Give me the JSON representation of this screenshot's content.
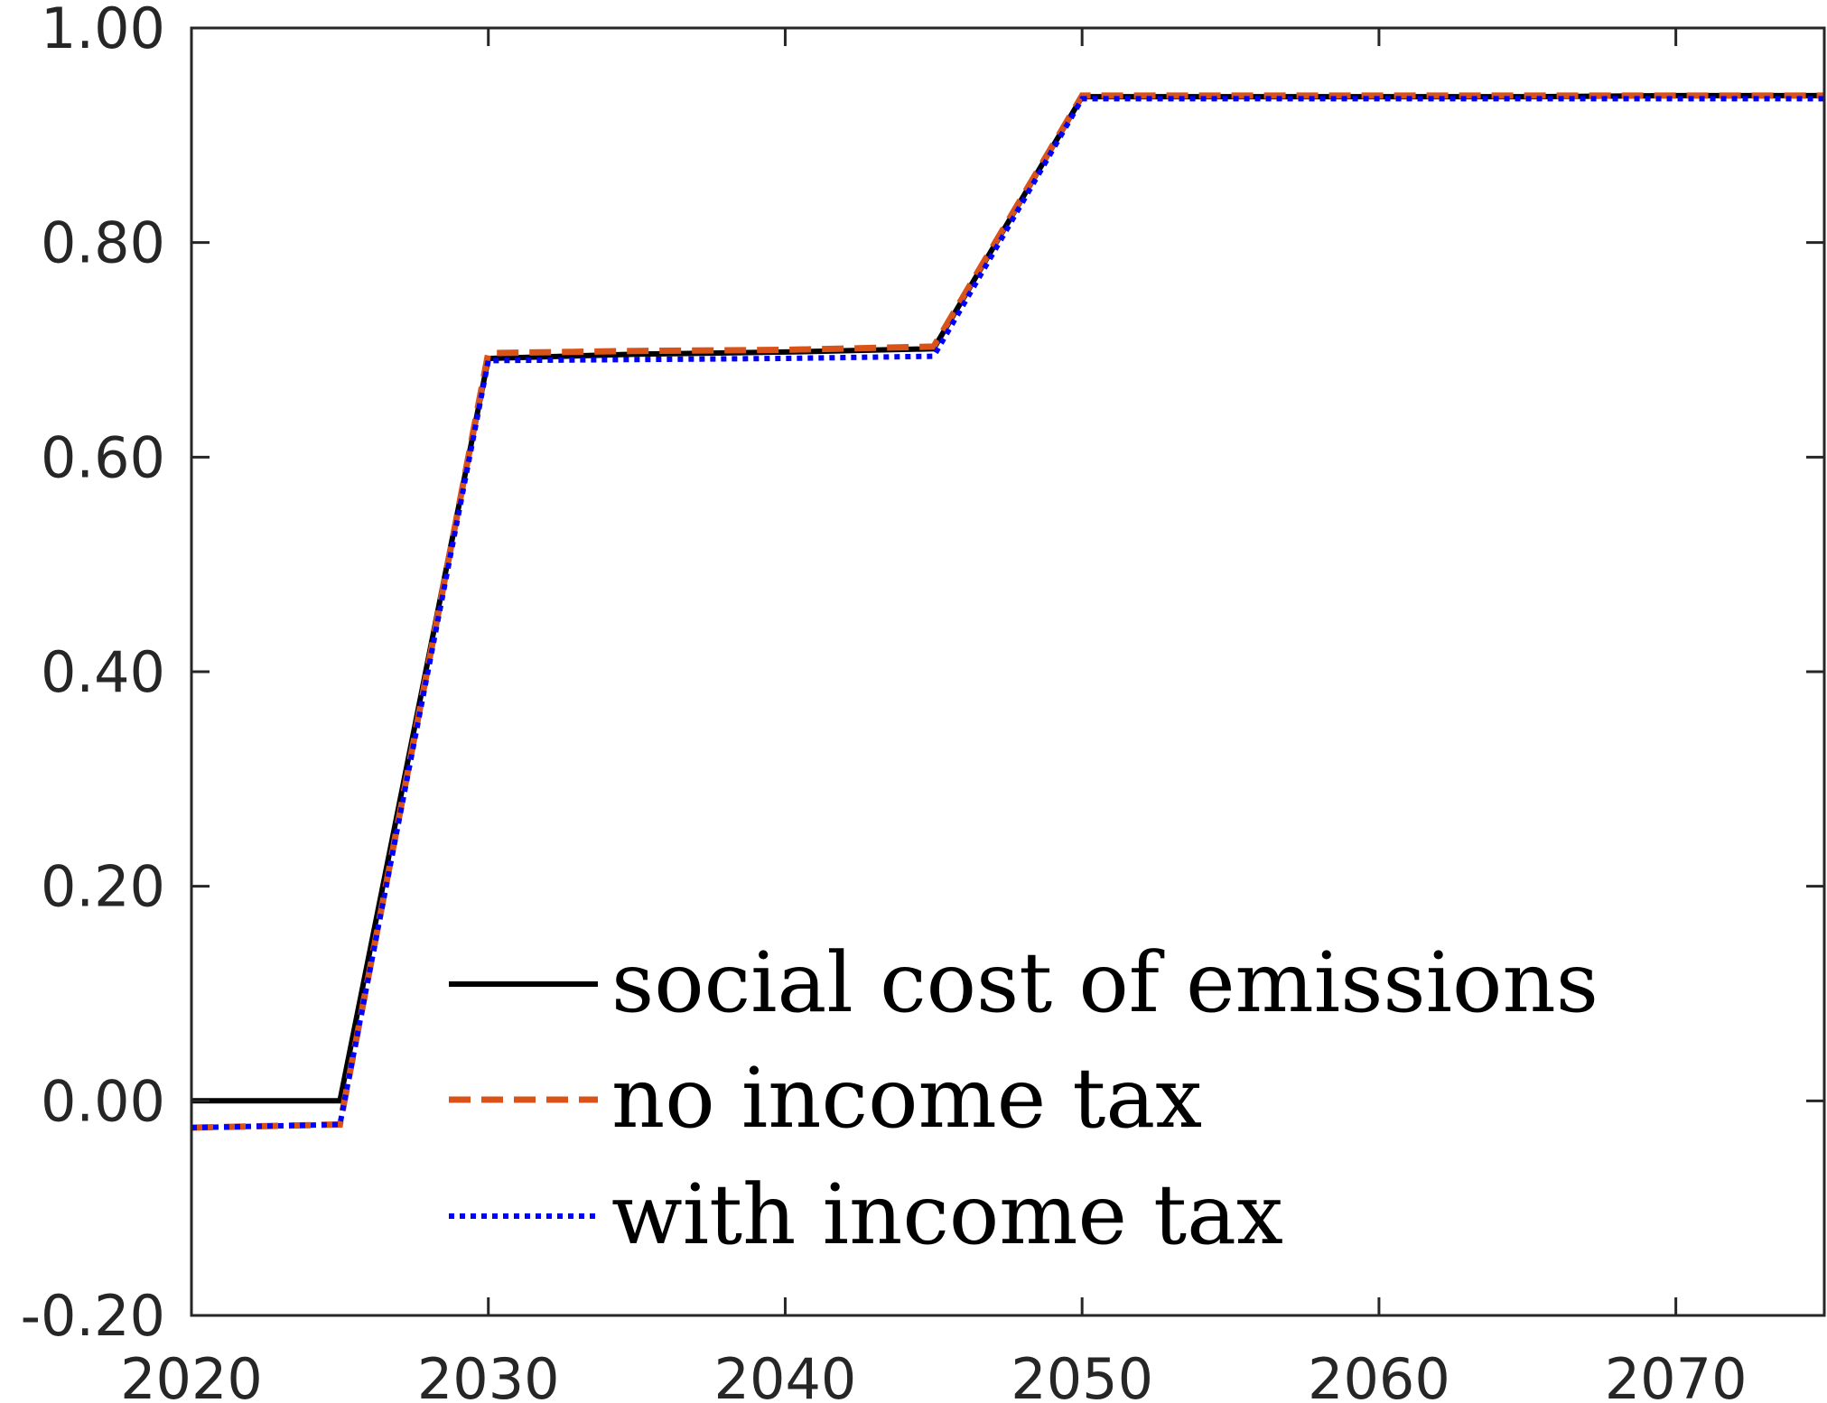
{
  "chart_data": {
    "type": "line",
    "title": "",
    "xlabel": "",
    "ylabel": "",
    "xlim": [
      2020,
      2075
    ],
    "ylim": [
      -0.2,
      1.0
    ],
    "x_ticks": [
      2020,
      2030,
      2040,
      2050,
      2060,
      2070
    ],
    "y_ticks": [
      -0.2,
      0.0,
      0.2,
      0.4,
      0.6,
      0.8,
      1.0
    ],
    "x_tick_labels": [
      "2020",
      "2030",
      "2040",
      "2050",
      "2060",
      "2070"
    ],
    "y_tick_labels": [
      "-0.20",
      "0.00",
      "0.20",
      "0.40",
      "0.60",
      "0.80",
      "1.00"
    ],
    "grid": false,
    "legend_position": "bottom-center",
    "series": [
      {
        "name": "social cost of emissions",
        "color": "#000000",
        "style": "solid",
        "x": [
          2020,
          2025,
          2030,
          2035,
          2040,
          2045,
          2050,
          2055,
          2060,
          2065,
          2070,
          2075
        ],
        "y": [
          0.0,
          0.0,
          0.692,
          0.696,
          0.698,
          0.701,
          0.936,
          0.936,
          0.936,
          0.936,
          0.937,
          0.937
        ]
      },
      {
        "name": "no income tax",
        "color": "#D95319",
        "style": "dashed",
        "x": [
          2020,
          2025,
          2030,
          2035,
          2040,
          2045,
          2050,
          2055,
          2060,
          2065,
          2070,
          2075
        ],
        "y": [
          -0.025,
          -0.022,
          0.697,
          0.699,
          0.7,
          0.703,
          0.937,
          0.937,
          0.937,
          0.937,
          0.937,
          0.937
        ]
      },
      {
        "name": "with income tax",
        "color": "#0000FF",
        "style": "dotted",
        "x": [
          2020,
          2025,
          2030,
          2035,
          2040,
          2045,
          2050,
          2055,
          2060,
          2065,
          2070,
          2075
        ],
        "y": [
          -0.025,
          -0.022,
          0.69,
          0.691,
          0.692,
          0.694,
          0.934,
          0.934,
          0.934,
          0.934,
          0.934,
          0.934
        ]
      }
    ]
  }
}
